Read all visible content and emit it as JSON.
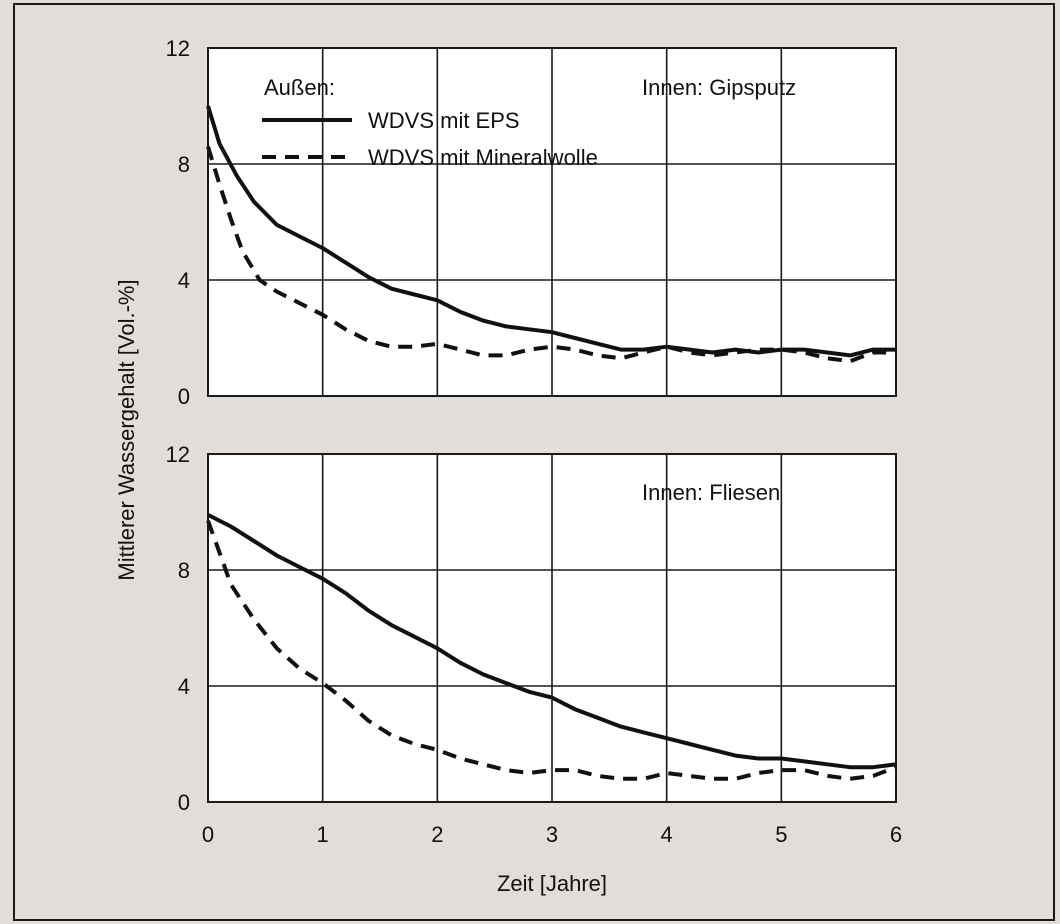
{
  "page": {
    "background": "#e2ddd8",
    "frame_color": "#1a1a1a"
  },
  "chart_data": [
    {
      "type": "line",
      "title": "Innen: Gipsputz",
      "xlabel": "Zeit [Jahre]",
      "ylabel": "Mittlerer Wassergehalt [Vol.-%]",
      "xlim": [
        0,
        6
      ],
      "ylim": [
        0,
        12
      ],
      "x_ticks": [
        "0",
        "1",
        "2",
        "3",
        "4",
        "5",
        "6"
      ],
      "y_ticks": [
        "0",
        "4",
        "8",
        "12"
      ],
      "grid": true,
      "legend_title": "Außen:",
      "legend_position": "top-left",
      "series": [
        {
          "name": "WDVS mit EPS",
          "style": "solid",
          "points": [
            [
              0,
              10.0
            ],
            [
              0.1,
              8.7
            ],
            [
              0.25,
              7.6
            ],
            [
              0.4,
              6.7
            ],
            [
              0.6,
              5.9
            ],
            [
              0.8,
              5.5
            ],
            [
              1.0,
              5.1
            ],
            [
              1.2,
              4.6
            ],
            [
              1.4,
              4.1
            ],
            [
              1.6,
              3.7
            ],
            [
              1.8,
              3.5
            ],
            [
              2.0,
              3.3
            ],
            [
              2.2,
              2.9
            ],
            [
              2.4,
              2.6
            ],
            [
              2.6,
              2.4
            ],
            [
              2.8,
              2.3
            ],
            [
              3.0,
              2.2
            ],
            [
              3.2,
              2.0
            ],
            [
              3.4,
              1.8
            ],
            [
              3.6,
              1.6
            ],
            [
              3.8,
              1.6
            ],
            [
              4.0,
              1.7
            ],
            [
              4.2,
              1.6
            ],
            [
              4.4,
              1.5
            ],
            [
              4.6,
              1.6
            ],
            [
              4.8,
              1.5
            ],
            [
              5.0,
              1.6
            ],
            [
              5.2,
              1.6
            ],
            [
              5.4,
              1.5
            ],
            [
              5.6,
              1.4
            ],
            [
              5.8,
              1.6
            ],
            [
              6.0,
              1.6
            ]
          ]
        },
        {
          "name": "WDVS mit Mineralwolle",
          "style": "dashed",
          "points": [
            [
              0,
              8.6
            ],
            [
              0.1,
              7.3
            ],
            [
              0.2,
              6.1
            ],
            [
              0.3,
              5.0
            ],
            [
              0.45,
              4.0
            ],
            [
              0.6,
              3.6
            ],
            [
              0.8,
              3.2
            ],
            [
              1.0,
              2.8
            ],
            [
              1.2,
              2.3
            ],
            [
              1.4,
              1.9
            ],
            [
              1.6,
              1.7
            ],
            [
              1.8,
              1.7
            ],
            [
              2.0,
              1.8
            ],
            [
              2.2,
              1.6
            ],
            [
              2.4,
              1.4
            ],
            [
              2.6,
              1.4
            ],
            [
              2.8,
              1.6
            ],
            [
              3.0,
              1.7
            ],
            [
              3.2,
              1.6
            ],
            [
              3.4,
              1.4
            ],
            [
              3.6,
              1.3
            ],
            [
              3.8,
              1.5
            ],
            [
              4.0,
              1.7
            ],
            [
              4.2,
              1.5
            ],
            [
              4.4,
              1.4
            ],
            [
              4.6,
              1.5
            ],
            [
              4.8,
              1.6
            ],
            [
              5.0,
              1.6
            ],
            [
              5.2,
              1.5
            ],
            [
              5.4,
              1.3
            ],
            [
              5.6,
              1.2
            ],
            [
              5.8,
              1.5
            ],
            [
              6.0,
              1.5
            ]
          ]
        }
      ]
    },
    {
      "type": "line",
      "title": "Innen: Fliesen",
      "xlabel": "Zeit [Jahre]",
      "ylabel": "Mittlerer Wassergehalt [Vol.-%]",
      "xlim": [
        0,
        6
      ],
      "ylim": [
        0,
        12
      ],
      "x_ticks": [
        "0",
        "1",
        "2",
        "3",
        "4",
        "5",
        "6"
      ],
      "y_ticks": [
        "0",
        "4",
        "8",
        "12"
      ],
      "grid": true,
      "series": [
        {
          "name": "WDVS mit EPS",
          "style": "solid",
          "points": [
            [
              0,
              9.9
            ],
            [
              0.2,
              9.5
            ],
            [
              0.4,
              9.0
            ],
            [
              0.6,
              8.5
            ],
            [
              0.8,
              8.1
            ],
            [
              1.0,
              7.7
            ],
            [
              1.2,
              7.2
            ],
            [
              1.4,
              6.6
            ],
            [
              1.6,
              6.1
            ],
            [
              1.8,
              5.7
            ],
            [
              2.0,
              5.3
            ],
            [
              2.2,
              4.8
            ],
            [
              2.4,
              4.4
            ],
            [
              2.6,
              4.1
            ],
            [
              2.8,
              3.8
            ],
            [
              3.0,
              3.6
            ],
            [
              3.2,
              3.2
            ],
            [
              3.4,
              2.9
            ],
            [
              3.6,
              2.6
            ],
            [
              3.8,
              2.4
            ],
            [
              4.0,
              2.2
            ],
            [
              4.2,
              2.0
            ],
            [
              4.4,
              1.8
            ],
            [
              4.6,
              1.6
            ],
            [
              4.8,
              1.5
            ],
            [
              5.0,
              1.5
            ],
            [
              5.2,
              1.4
            ],
            [
              5.4,
              1.3
            ],
            [
              5.6,
              1.2
            ],
            [
              5.8,
              1.2
            ],
            [
              6.0,
              1.3
            ]
          ]
        },
        {
          "name": "WDVS mit Mineralwolle",
          "style": "dashed",
          "points": [
            [
              0,
              9.7
            ],
            [
              0.1,
              8.6
            ],
            [
              0.2,
              7.5
            ],
            [
              0.4,
              6.3
            ],
            [
              0.6,
              5.3
            ],
            [
              0.8,
              4.6
            ],
            [
              1.0,
              4.1
            ],
            [
              1.2,
              3.5
            ],
            [
              1.4,
              2.8
            ],
            [
              1.6,
              2.3
            ],
            [
              1.8,
              2.0
            ],
            [
              2.0,
              1.8
            ],
            [
              2.2,
              1.5
            ],
            [
              2.4,
              1.3
            ],
            [
              2.6,
              1.1
            ],
            [
              2.8,
              1.0
            ],
            [
              3.0,
              1.1
            ],
            [
              3.2,
              1.1
            ],
            [
              3.4,
              0.9
            ],
            [
              3.6,
              0.8
            ],
            [
              3.8,
              0.8
            ],
            [
              4.0,
              1.0
            ],
            [
              4.2,
              0.9
            ],
            [
              4.4,
              0.8
            ],
            [
              4.6,
              0.8
            ],
            [
              4.8,
              1.0
            ],
            [
              5.0,
              1.1
            ],
            [
              5.2,
              1.1
            ],
            [
              5.4,
              0.9
            ],
            [
              5.6,
              0.8
            ],
            [
              5.8,
              0.9
            ],
            [
              6.0,
              1.2
            ]
          ]
        }
      ]
    }
  ]
}
